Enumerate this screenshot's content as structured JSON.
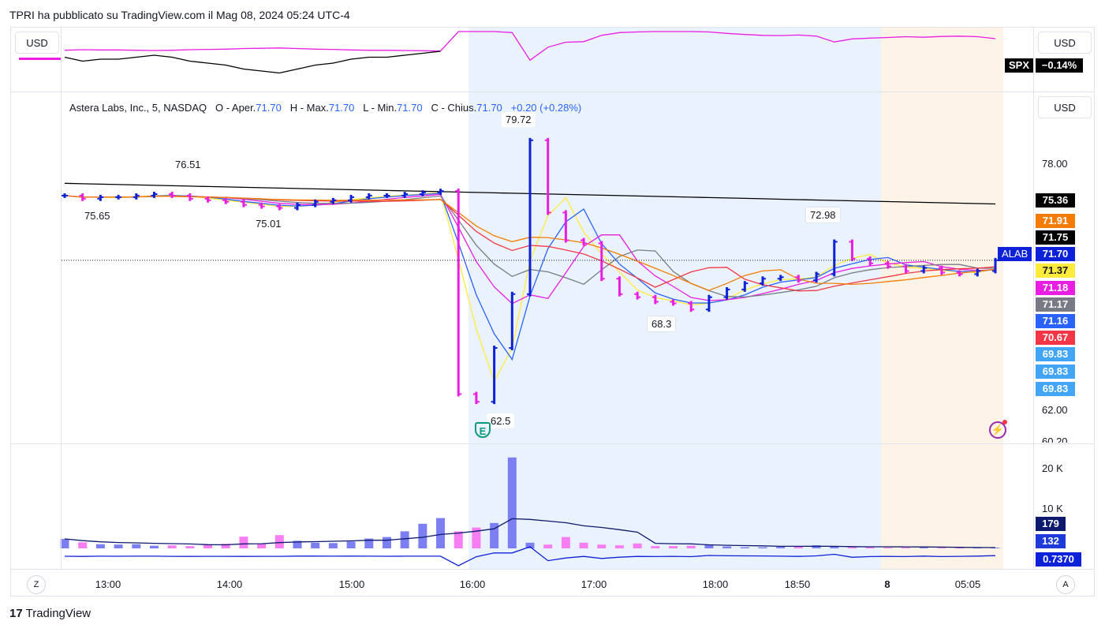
{
  "header": {
    "title": "TPRI ha pubblicato su TradingView.com il Mag 08, 2024 05:24 UTC-4"
  },
  "currency": {
    "top_left": "USD",
    "top_right": "USD",
    "main_right": "USD"
  },
  "spx": {
    "label": "SPX",
    "change": "−0.14%"
  },
  "legend": {
    "name": "Astera Labs, Inc., 5, NASDAQ",
    "o_label": "O - Aper.",
    "o": "71.70",
    "h_label": "H - Max.",
    "h": "71.70",
    "l_label": "L - Min.",
    "l": "71.70",
    "c_label": "C - Chius.",
    "c": "71.70",
    "chg": "+0.20 (+0.28%)"
  },
  "price_axis": [
    "78.00",
    "62.00",
    "60.20"
  ],
  "volume_axis": [
    "20 K",
    "10 K"
  ],
  "time_axis": [
    "13:00",
    "14:00",
    "15:00",
    "16:00",
    "17:00",
    "18:00",
    "18:50",
    "8",
    "05:05"
  ],
  "price_tags": [
    {
      "text": "75.36",
      "color": "#000000"
    },
    {
      "text": "71.91",
      "color": "#f57c00"
    },
    {
      "text": "71.75",
      "color": "#000000"
    },
    {
      "text": "71.70",
      "color": "#0d22d8"
    },
    {
      "text": "71.37",
      "color": "#ffeb3b",
      "fg": "#131722"
    },
    {
      "text": "71.18",
      "color": "#e91ee3"
    },
    {
      "text": "71.17",
      "color": "#787b86"
    },
    {
      "text": "71.16",
      "color": "#2962ff"
    },
    {
      "text": "70.67",
      "color": "#f23645"
    },
    {
      "text": "69.83",
      "color": "#42a5f5"
    },
    {
      "text": "69.83",
      "color": "#42a5f5"
    },
    {
      "text": "69.83",
      "color": "#42a5f5"
    }
  ],
  "symbol_tag": "ALAB",
  "volume_tags": [
    {
      "text": "179",
      "color": "#0d1a6e"
    },
    {
      "text": "132",
      "color": "#1e3bd9"
    }
  ],
  "indicator_tag": {
    "text": "0.7370",
    "color": "#0d22d8"
  },
  "annotations": [
    "79.72",
    "76.51",
    "75.65",
    "75.01",
    "72.98",
    "68.3",
    "62.5"
  ],
  "earnings_marker": "E",
  "bottom_buttons": {
    "left": "Z",
    "right": "A"
  },
  "brand": {
    "logo": "17",
    "name": "TradingView"
  },
  "chart_data": {
    "type": "bar",
    "title": "Astera Labs, Inc., 5, NASDAQ",
    "xlabel": "",
    "ylabel": "",
    "ylim": [
      60.2,
      80.5
    ],
    "x": [
      "12:35",
      "12:45",
      "12:55",
      "13:05",
      "13:15",
      "13:25",
      "13:35",
      "13:45",
      "13:55",
      "14:05",
      "14:15",
      "14:25",
      "14:35",
      "14:45",
      "14:55",
      "15:05",
      "15:15",
      "15:25",
      "15:35",
      "15:45",
      "15:55",
      "16:00",
      "16:05",
      "16:10",
      "16:15",
      "16:20",
      "16:25",
      "16:30",
      "16:35",
      "16:45",
      "16:55",
      "17:05",
      "17:15",
      "17:25",
      "17:35",
      "17:45",
      "17:55",
      "18:05",
      "18:15",
      "18:25",
      "18:35",
      "18:45",
      "18:55",
      "19:05",
      "19:15",
      "19:25",
      "19:35",
      "04:05",
      "04:20",
      "04:35",
      "04:50",
      "05:05",
      "05:15"
    ],
    "close": [
      75.9,
      75.7,
      75.8,
      75.8,
      75.9,
      76.0,
      75.9,
      75.7,
      75.6,
      75.5,
      75.3,
      75.2,
      75.1,
      75.3,
      75.5,
      75.6,
      75.8,
      75.9,
      75.9,
      76.0,
      76.1,
      76.2,
      63.0,
      62.5,
      66.0,
      69.5,
      79.5,
      74.8,
      73.0,
      72.8,
      70.5,
      69.5,
      69.3,
      69.0,
      68.9,
      68.5,
      69.3,
      69.8,
      70.2,
      70.5,
      70.6,
      70.4,
      70.8,
      72.9,
      71.8,
      71.5,
      71.3,
      71.0,
      71.2,
      70.9,
      70.8,
      71.0,
      71.7
    ],
    "volume_k": [
      2.5,
      1.6,
      1.1,
      1.0,
      1.1,
      0.7,
      0.8,
      0.6,
      1.0,
      1.2,
      3.1,
      1.3,
      3.5,
      2.0,
      1.5,
      1.4,
      1.8,
      2.6,
      3.0,
      4.5,
      6.5,
      8.0,
      4.5,
      5.5,
      6.7,
      24.0,
      1.5,
      1.0,
      3.0,
      1.5,
      1.0,
      0.8,
      1.3,
      0.6,
      0.6,
      0.7,
      1.0,
      0.5,
      0.3,
      0.3,
      0.4,
      0.5,
      0.8,
      0.5,
      0.3,
      0.3,
      0.2,
      0.2,
      0.2,
      0.2,
      0.2,
      0.2,
      0.2
    ],
    "volume_ylim": [
      0,
      25
    ]
  }
}
